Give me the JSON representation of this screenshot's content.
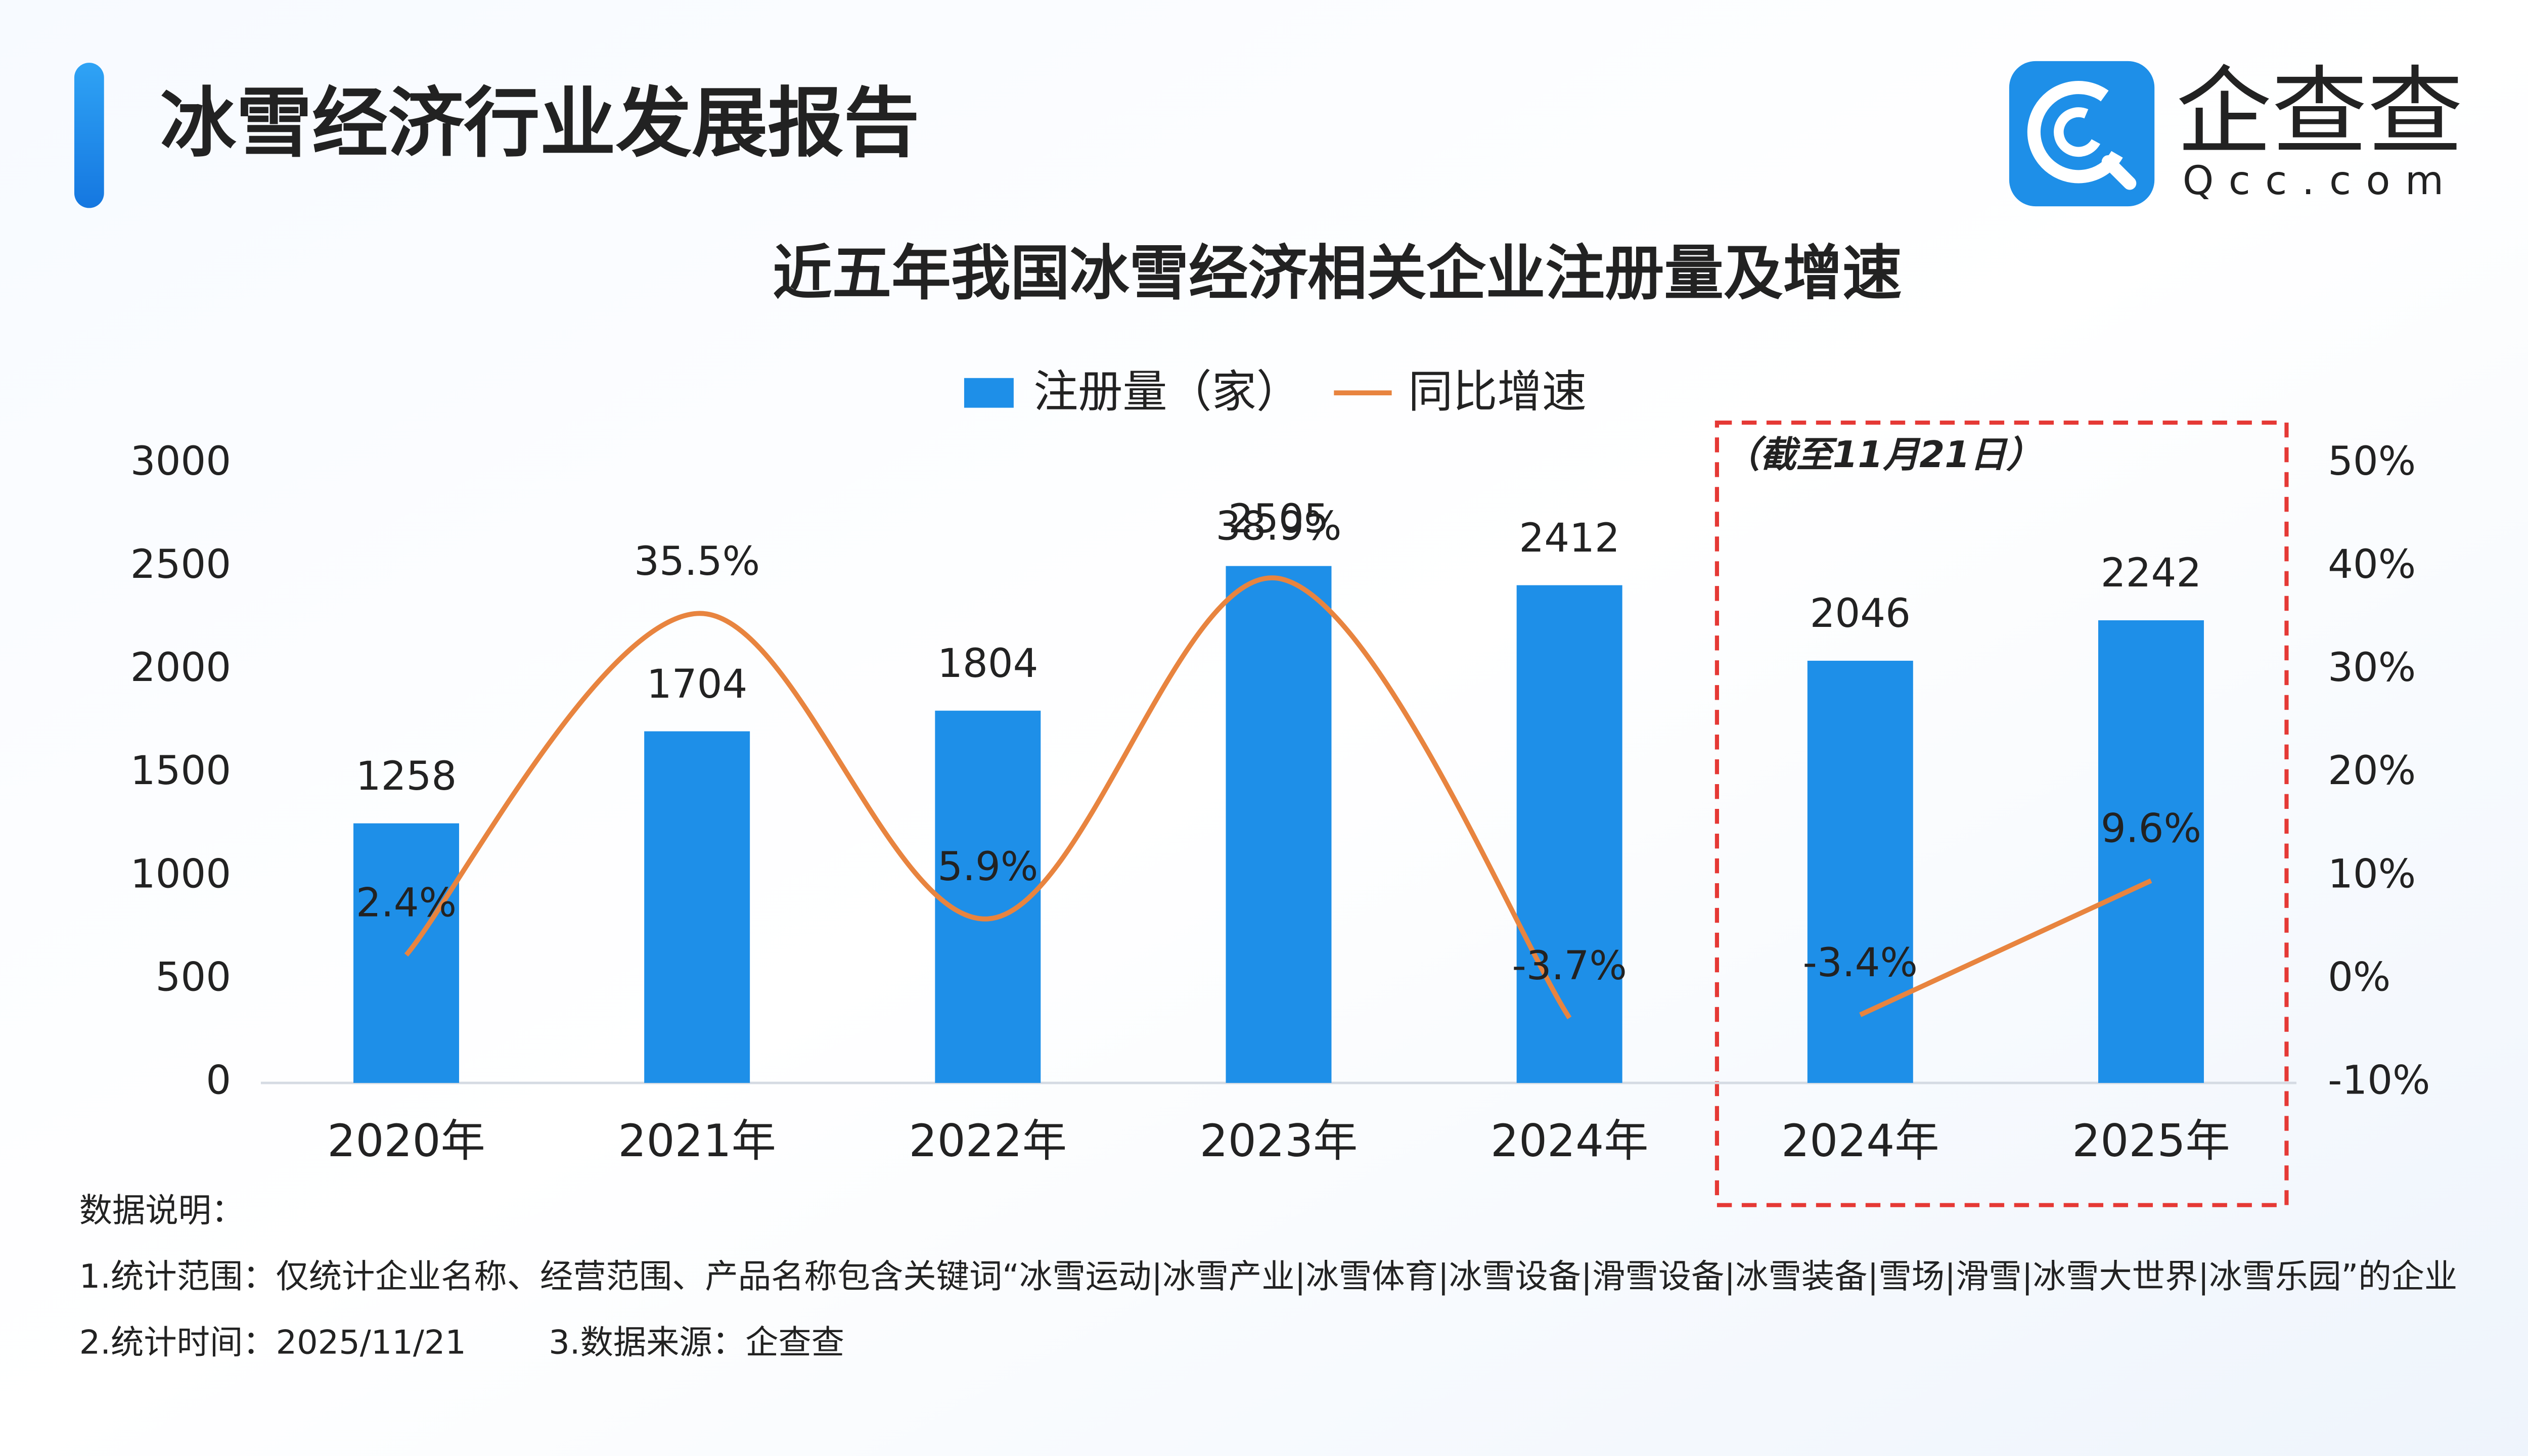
{
  "header": {
    "title": "冰雪经济行业发展报告"
  },
  "logo": {
    "name": "企查查",
    "domain": "Qcc.com"
  },
  "chart_data": {
    "type": "bar",
    "title": "近五年我国冰雪经济相关企业注册量及增速",
    "annotation": "（截至11月21日）",
    "categories": [
      "2020年",
      "2021年",
      "2022年",
      "2023年",
      "2024年",
      "2024年",
      "2025年"
    ],
    "series": [
      {
        "name": "注册量（家）",
        "type": "bar",
        "color": "#1e8fe8",
        "values": [
          1258,
          1704,
          1804,
          2505,
          2412,
          2046,
          2242
        ]
      },
      {
        "name": "同比增速",
        "type": "line",
        "axis": "y2",
        "color": "#e8843f",
        "values": [
          2.4,
          35.5,
          5.9,
          38.9,
          -3.7,
          -3.4,
          9.6
        ],
        "value_labels": [
          "2.4%",
          "35.5%",
          "5.9%",
          "38.9%",
          "-3.7%",
          "-3.4%",
          "9.6%"
        ]
      }
    ],
    "ylim": [
      0,
      3000
    ],
    "yticks": [
      0,
      500,
      1000,
      1500,
      2000,
      2500,
      3000
    ],
    "y2lim": [
      -10,
      50
    ],
    "y2ticks": [
      {
        "value": -10,
        "label": "-10%"
      },
      {
        "value": 0,
        "label": "0%"
      },
      {
        "value": 10,
        "label": "10%"
      },
      {
        "value": 20,
        "label": "20%"
      },
      {
        "value": 30,
        "label": "30%"
      },
      {
        "value": 40,
        "label": "40%"
      },
      {
        "value": 50,
        "label": "50%"
      }
    ],
    "legend": "top"
  },
  "notes": {
    "heading": "数据说明：",
    "items": [
      "1.统计范围：仅统计企业名称、经营范围、产品名称包含关键词“冰雪运动|冰雪产业|冰雪体育|冰雪设备|滑雪设备|冰雪装备|雪场|滑雪|冰雪大世界|冰雪乐园”的企业",
      "2.统计时间：2025/11/21",
      "3.数据来源：企查查"
    ]
  }
}
